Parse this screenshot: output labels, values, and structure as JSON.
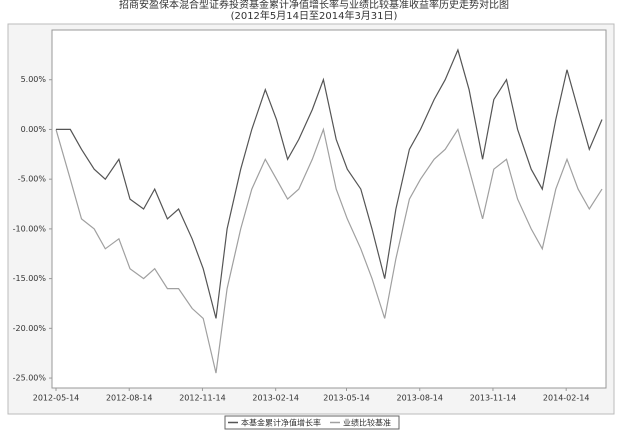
{
  "chart_data": {
    "type": "line",
    "title": "招商安盈保本混合型证券投资基金累计净值增长率与业绩比较基准收益率历史走势对比图",
    "subtitle": "(2012年5月14日至2014年3月31日)",
    "x": [
      "2012-05-14",
      "2012-06-01",
      "2012-06-15",
      "2012-07-01",
      "2012-07-15",
      "2012-08-01",
      "2012-08-15",
      "2012-09-01",
      "2012-09-15",
      "2012-10-01",
      "2012-10-15",
      "2012-11-01",
      "2012-11-15",
      "2012-12-01",
      "2012-12-15",
      "2013-01-01",
      "2013-01-15",
      "2013-02-01",
      "2013-02-15",
      "2013-03-01",
      "2013-03-15",
      "2013-04-01",
      "2013-04-15",
      "2013-05-01",
      "2013-05-15",
      "2013-06-01",
      "2013-06-15",
      "2013-07-01",
      "2013-07-15",
      "2013-08-01",
      "2013-08-15",
      "2013-09-01",
      "2013-09-15",
      "2013-10-01",
      "2013-10-15",
      "2013-11-01",
      "2013-11-15",
      "2013-12-01",
      "2013-12-15",
      "2014-01-01",
      "2014-01-15",
      "2014-02-01",
      "2014-02-15",
      "2014-03-01",
      "2014-03-15",
      "2014-03-31"
    ],
    "series": [
      {
        "name": "本基金累计净值增长率",
        "color": "#555555",
        "values": [
          0,
          0,
          -2,
          -4,
          -5,
          -3,
          -7,
          -8,
          -6,
          -9,
          -8,
          -11,
          -14,
          -19,
          -10,
          -4,
          0,
          4,
          1,
          -3,
          -1,
          2,
          5,
          -1,
          -4,
          -6,
          -10,
          -15,
          -8,
          -2,
          0,
          3,
          5,
          8,
          4,
          -3,
          3,
          5,
          0,
          -4,
          -6,
          1,
          6,
          2,
          -2,
          1
        ]
      },
      {
        "name": "业绩比较基准",
        "color": "#a0a0a0",
        "values": [
          0,
          -5,
          -9,
          -10,
          -12,
          -11,
          -14,
          -15,
          -14,
          -16,
          -16,
          -18,
          -19,
          -24.5,
          -16,
          -10,
          -6,
          -3,
          -5,
          -7,
          -6,
          -3,
          0,
          -6,
          -9,
          -12,
          -15,
          -19,
          -13,
          -7,
          -5,
          -3,
          -2,
          0,
          -4,
          -9,
          -4,
          -3,
          -7,
          -10,
          -12,
          -6,
          -3,
          -6,
          -8,
          -6
        ]
      }
    ],
    "ylim": [
      -26,
      10
    ],
    "yticks": [
      {
        "value": -25,
        "label": "-25.00%"
      },
      {
        "value": -20,
        "label": "-20.00%"
      },
      {
        "value": -15,
        "label": "-15.00%"
      },
      {
        "value": -10,
        "label": "-10.00%"
      },
      {
        "value": -5,
        "label": "-5.00%"
      },
      {
        "value": 0,
        "label": "0.00%"
      },
      {
        "value": 5,
        "label": "5.00%"
      }
    ],
    "xlim": [
      "2012-05-14",
      "2014-03-31"
    ],
    "xticks": [
      "2012-05-14",
      "2012-08-14",
      "2012-11-14",
      "2013-02-14",
      "2013-05-14",
      "2013-08-14",
      "2013-11-14",
      "2014-02-14"
    ],
    "legend": "bottom"
  }
}
